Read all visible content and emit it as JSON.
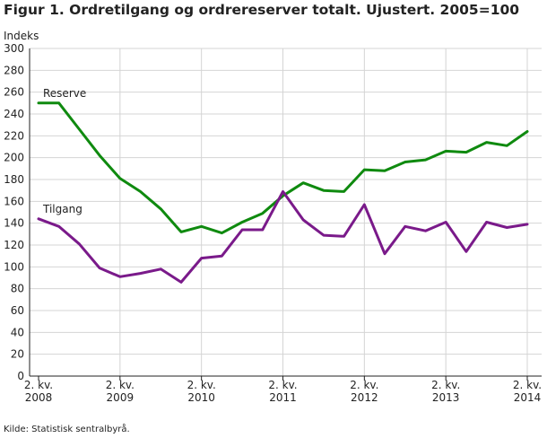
{
  "chart_data": {
    "type": "line",
    "title": "Figur 1. Ordretilgang og ordrereserver totalt. Ujustert. 2005=100",
    "ylabel": "Indeks",
    "xlabel": "",
    "ylim": [
      0,
      300
    ],
    "yticks": [
      0,
      20,
      40,
      60,
      80,
      100,
      120,
      140,
      160,
      180,
      200,
      220,
      240,
      260,
      280,
      300
    ],
    "grid": true,
    "x_tick_labels": [
      {
        "index": 0,
        "line1": "2. kv.",
        "line2": "2008"
      },
      {
        "index": 4,
        "line1": "2. kv.",
        "line2": "2009"
      },
      {
        "index": 8,
        "line1": "2. kv.",
        "line2": "2010"
      },
      {
        "index": 12,
        "line1": "2. kv.",
        "line2": "2011"
      },
      {
        "index": 16,
        "line1": "2. kv.",
        "line2": "2012"
      },
      {
        "index": 20,
        "line1": "2. kv.",
        "line2": "2013"
      },
      {
        "index": 24,
        "line1": "2. kv.",
        "line2": "2014"
      }
    ],
    "series": [
      {
        "name": "Reserve",
        "color": "#0f8a0f",
        "values": [
          250,
          250,
          226,
          202,
          181,
          169,
          153,
          132,
          137,
          131,
          141,
          149,
          165,
          177,
          170,
          169,
          189,
          188,
          196,
          198,
          206,
          205,
          214,
          211,
          224
        ]
      },
      {
        "name": "Tilgang",
        "color": "#7a1a8a",
        "values": [
          144,
          137,
          121,
          99,
          91,
          94,
          98,
          86,
          108,
          110,
          134,
          134,
          169,
          143,
          129,
          128,
          157,
          112,
          137,
          133,
          141,
          114,
          141,
          136,
          139
        ]
      }
    ]
  },
  "source": "Kilde: Statistisk sentralbyrå."
}
